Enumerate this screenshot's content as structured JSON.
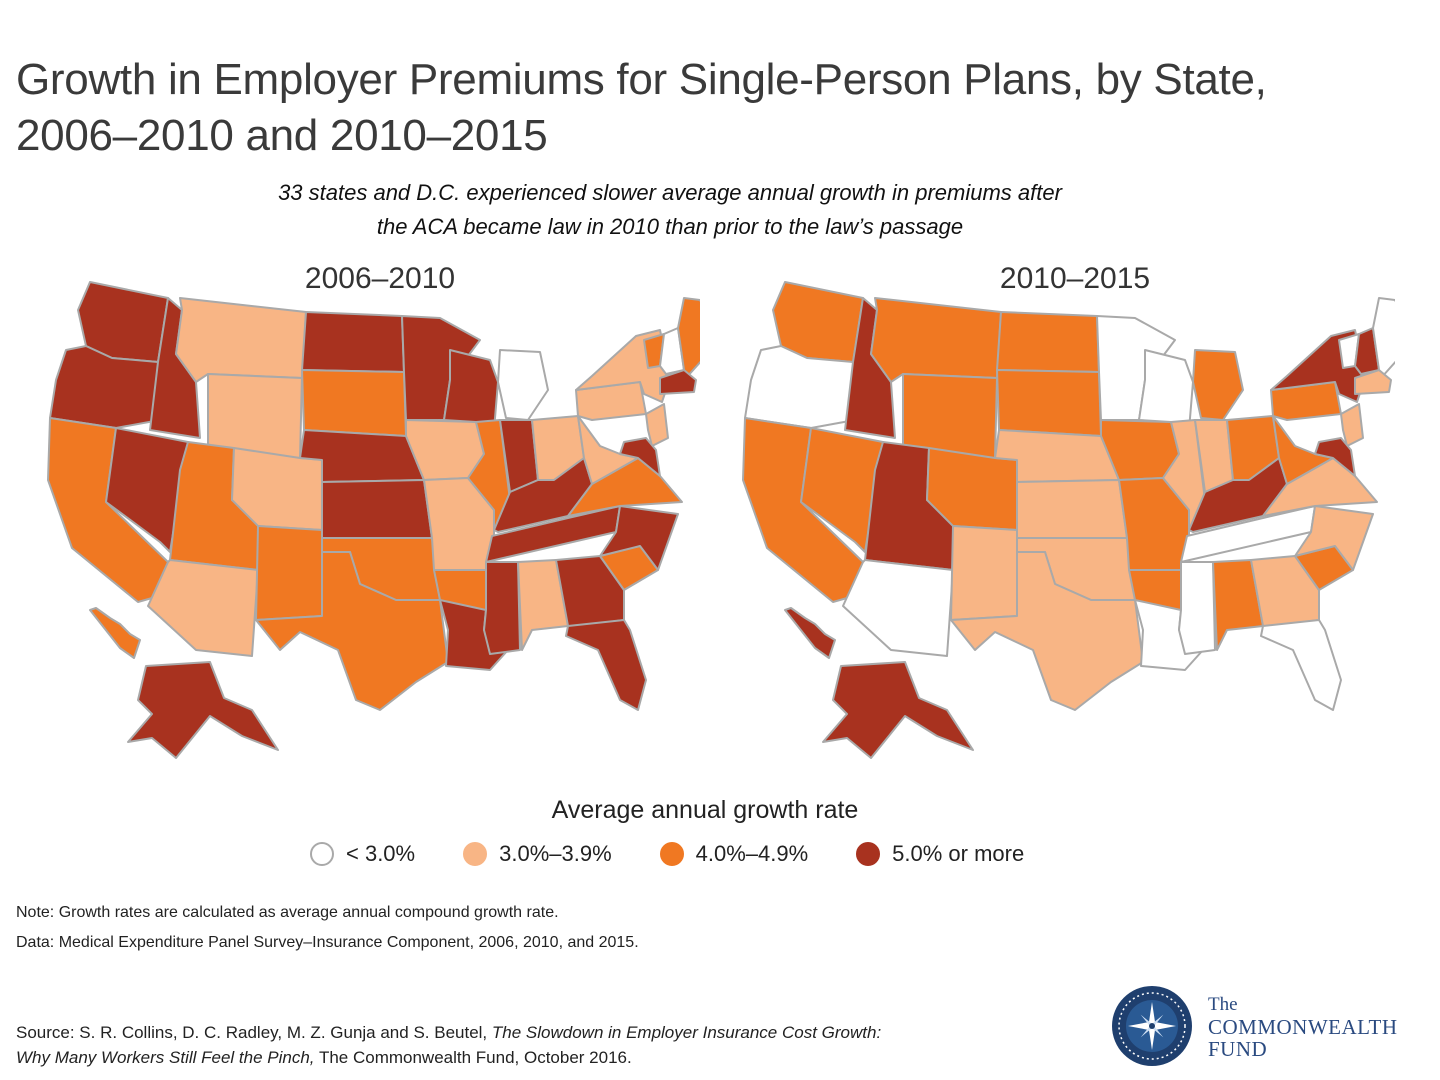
{
  "title_line1": "Growth in Employer Premiums for Single-Person Plans, by State,",
  "title_line2": "2006–2010 and 2010–2015",
  "subtitle_line1": "33 states and D.C. experienced slower average annual growth in premiums after",
  "subtitle_line2": "the ACA became law in 2010 than prior to the law’s passage",
  "maps": [
    {
      "title": "2006–2010"
    },
    {
      "title": "2010–2015"
    }
  ],
  "legend": {
    "title": "Average annual growth rate",
    "items": [
      {
        "label": "< 3.0%",
        "color": "#ffffff"
      },
      {
        "label": "3.0%–3.9%",
        "color": "#f8b585"
      },
      {
        "label": "4.0%–4.9%",
        "color": "#f07822"
      },
      {
        "label": "5.0% or more",
        "color": "#a8321f"
      }
    ]
  },
  "state_categories": {
    "2006–2010": {
      "WA": "4",
      "OR": "4",
      "CA": "3",
      "NV": "4",
      "ID": "4",
      "MT": "2",
      "WY": "2",
      "UT": "3",
      "AZ": "2",
      "CO": "2",
      "NM": "3",
      "ND": "4",
      "SD": "3",
      "NE": "4",
      "KS": "4",
      "OK": "3",
      "TX": "3",
      "MN": "4",
      "IA": "2",
      "MO": "2",
      "AR": "3",
      "LA": "4",
      "WI": "4",
      "IL": "3",
      "MI": "1",
      "IN": "4",
      "OH": "2",
      "KY": "4",
      "TN": "4",
      "MS": "4",
      "AL": "2",
      "GA": "4",
      "FL": "4",
      "SC": "3",
      "NC": "4",
      "VA": "3",
      "WV": "2",
      "PA": "2",
      "NY": "2",
      "VT": "3",
      "NH": "1",
      "ME": "3",
      "MA": "4",
      "NJ": "2",
      "MD": "4",
      "AK": "4",
      "HI": "3"
    },
    "2010–2015": {
      "WA": "3",
      "OR": "1",
      "CA": "3",
      "NV": "3",
      "ID": "4",
      "MT": "3",
      "WY": "3",
      "UT": "4",
      "AZ": "1",
      "CO": "3",
      "NM": "2",
      "ND": "3",
      "SD": "3",
      "NE": "2",
      "KS": "2",
      "OK": "2",
      "TX": "2",
      "MN": "1",
      "IA": "3",
      "MO": "3",
      "AR": "3",
      "LA": "1",
      "WI": "1",
      "IL": "2",
      "MI": "3",
      "IN": "2",
      "OH": "3",
      "KY": "4",
      "TN": "1",
      "MS": "1",
      "AL": "3",
      "GA": "2",
      "FL": "1",
      "SC": "3",
      "NC": "2",
      "VA": "2",
      "WV": "3",
      "PA": "3",
      "NY": "4",
      "VT": "1",
      "NH": "4",
      "ME": "1",
      "MA": "2",
      "NJ": "2",
      "MD": "4",
      "AK": "4",
      "HI": "4"
    }
  },
  "note": "Note: Growth rates are calculated as average annual compound growth rate.",
  "data_line": "Data: Medical Expenditure Panel Survey–Insurance Component, 2006, 2010, and 2015.",
  "source_prefix": "Source: S. R. Collins, D. C. Radley, M. Z. Gunja and S. Beutel, ",
  "source_title": "The Slowdown in Employer Insurance Cost Growth: Why Many Workers Still Feel the Pinch,",
  "source_suffix": " The Commonwealth Fund, October 2016.",
  "logo": {
    "the": "The",
    "line1": "COMMONWEALTH",
    "line2": "FUND"
  }
}
